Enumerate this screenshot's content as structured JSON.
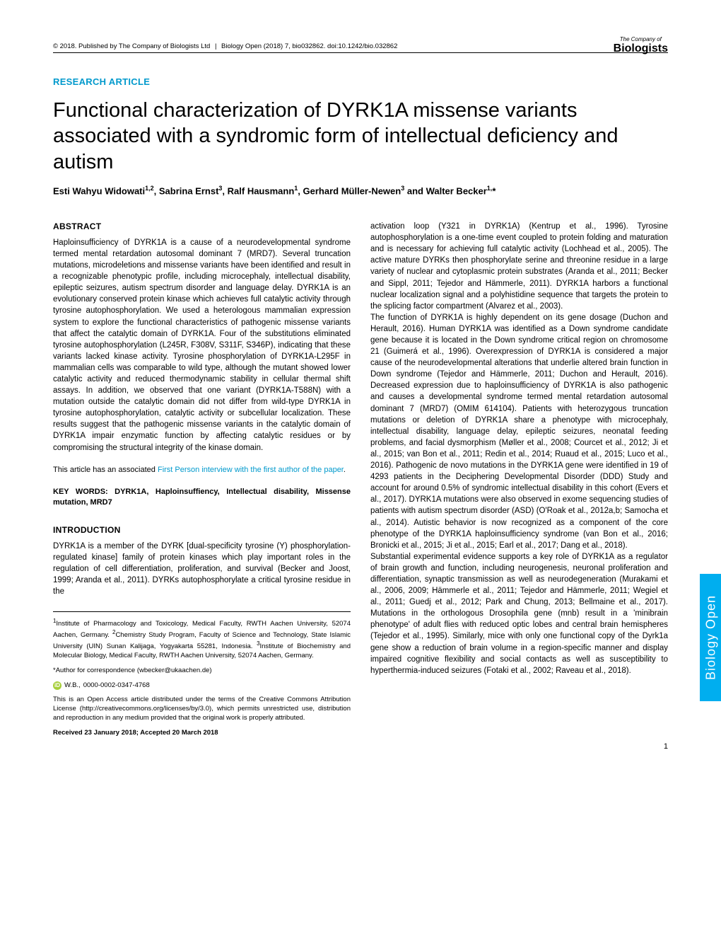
{
  "header": {
    "copyright": "© 2018. Published by The Company of Biologists Ltd",
    "journal": "Biology Open (2018) 7, bio032862. doi:10.1242/bio.032862",
    "logo_top": "The Company of",
    "logo_main": "Biologists"
  },
  "section_label": "RESEARCH ARTICLE",
  "title": "Functional characterization of DYRK1A missense variants associated with a syndromic form of intellectual deficiency and autism",
  "authors_html": "Esti Wahyu Widowati<sup>1,2</sup>, Sabrina Ernst<sup>3</sup>, Ralf Hausmann<sup>1</sup>, Gerhard Müller-Newen<sup>3</sup> and Walter Becker<sup>1,</sup>*",
  "abstract": {
    "heading": "ABSTRACT",
    "text": "Haploinsufficiency of DYRK1A is a cause of a neurodevelopmental syndrome termed mental retardation autosomal dominant 7 (MRD7). Several truncation mutations, microdeletions and missense variants have been identified and result in a recognizable phenotypic profile, including microcephaly, intellectual disability, epileptic seizures, autism spectrum disorder and language delay. DYRK1A is an evolutionary conserved protein kinase which achieves full catalytic activity through tyrosine autophosphorylation. We used a heterologous mammalian expression system to explore the functional characteristics of pathogenic missense variants that affect the catalytic domain of DYRK1A. Four of the substitutions eliminated tyrosine autophosphorylation (L245R, F308V, S311F, S346P), indicating that these variants lacked kinase activity. Tyrosine phosphorylation of DYRK1A-L295F in mammalian cells was comparable to wild type, although the mutant showed lower catalytic activity and reduced thermodynamic stability in cellular thermal shift assays. In addition, we observed that one variant (DYRK1A-T588N) with a mutation outside the catalytic domain did not differ from wild-type DYRK1A in tyrosine autophosphorylation, catalytic activity or subcellular localization. These results suggest that the pathogenic missense variants in the catalytic domain of DYRK1A impair enzymatic function by affecting catalytic residues or by compromising the structural integrity of the kinase domain."
  },
  "first_person": {
    "prefix": "This article has an associated ",
    "link_text": "First Person interview with the first author of the paper",
    "suffix": "."
  },
  "keywords": "KEY WORDS: DYRK1A, Haploinsuffiency, Intellectual disability, Missense mutation, MRD7",
  "intro": {
    "heading": "INTRODUCTION",
    "p1": "DYRK1A is a member of the DYRK [dual-specificity tyrosine (Y) phosphorylation-regulated kinase] family of protein kinases which play important roles in the regulation of cell differentiation, proliferation, and survival (Becker and Joost, 1999; Aranda et al., 2011). DYRKs autophosphorylate a critical tyrosine residue in the"
  },
  "right_col": {
    "p1": "activation loop (Y321 in DYRK1A) (Kentrup et al., 1996). Tyrosine autophosphorylation is a one-time event coupled to protein folding and maturation and is necessary for achieving full catalytic activity (Lochhead et al., 2005). The active mature DYRKs then phosphorylate serine and threonine residue in a large variety of nuclear and cytoplasmic protein substrates (Aranda et al., 2011; Becker and Sippl, 2011; Tejedor and Hämmerle, 2011). DYRK1A harbors a functional nuclear localization signal and a polyhistidine sequence that targets the protein to the splicing factor compartment (Alvarez et al., 2003).",
    "p2": "The function of DYRK1A is highly dependent on its gene dosage (Duchon and Herault, 2016). Human DYRK1A was identified as a Down syndrome candidate gene because it is located in the Down syndrome critical region on chromosome 21 (Guimerá et al., 1996). Overexpression of DYRK1A is considered a major cause of the neurodevelopmental alterations that underlie altered brain function in Down syndrome (Tejedor and Hämmerle, 2011; Duchon and Herault, 2016). Decreased expression due to haploinsufficiency of DYRK1A is also pathogenic and causes a developmental syndrome termed mental retardation autosomal dominant 7 (MRD7) (OMIM 614104). Patients with heterozygous truncation mutations or deletion of DYRK1A share a phenotype with microcephaly, intellectual disability, language delay, epileptic seizures, neonatal feeding problems, and facial dysmorphism (Møller et al., 2008; Courcet et al., 2012; Ji et al., 2015; van Bon et al., 2011; Redin et al., 2014; Ruaud et al., 2015; Luco et al., 2016). Pathogenic de novo mutations in the DYRK1A gene were identified in 19 of 4293 patients in the Deciphering Developmental Disorder (DDD) Study and account for around 0.5% of syndromic intellectual disability in this cohort (Evers et al., 2017). DYRK1A mutations were also observed in exome sequencing studies of patients with autism spectrum disorder (ASD) (O'Roak et al., 2012a,b; Samocha et al., 2014). Autistic behavior is now recognized as a component of the core phenotype of the DYRK1A haploinsufficiency syndrome (van Bon et al., 2016; Bronicki et al., 2015; Ji et al., 2015; Earl et al., 2017; Dang et al., 2018).",
    "p3": "Substantial experimental evidence supports a key role of DYRK1A as a regulator of brain growth and function, including neurogenesis, neuronal proliferation and differentiation, synaptic transmission as well as neurodegeneration (Murakami et al., 2006, 2009; Hämmerle et al., 2011; Tejedor and Hämmerle, 2011; Wegiel et al., 2011; Guedj et al., 2012; Park and Chung, 2013; Bellmaine et al., 2017). Mutations in the orthologous Drosophila gene (mnb) result in a 'minibrain phenotype' of adult flies with reduced optic lobes and central brain hemispheres (Tejedor et al., 1995). Similarly, mice with only one functional copy of the Dyrk1a gene show a reduction of brain volume in a region-specific manner and display impaired cognitive flexibility and social contacts as well as susceptibility to hyperthermia-induced seizures (Fotaki et al., 2002; Raveau et al., 2018)."
  },
  "footnotes": {
    "affil": "<sup>1</sup>Institute of Pharmacology and Toxicology, Medical Faculty, RWTH Aachen University, 52074 Aachen, Germany. <sup>2</sup>Chemistry Study Program, Faculty of Science and Technology, State Islamic University (UIN) Sunan Kalijaga, Yogyakarta 55281, Indonesia. <sup>3</sup>Institute of Biochemistry and Molecular Biology, Medical Faculty, RWTH Aachen University, 52074 Aachen, Germany.",
    "corr": "*Author for correspondence (wbecker@ukaachen.de)",
    "orcid_label": "W.B.,",
    "orcid_id": "0000-0002-0347-4768",
    "license": "This is an Open Access article distributed under the terms of the Creative Commons Attribution License (http://creativecommons.org/licenses/by/3.0), which permits unrestricted use, distribution and reproduction in any medium provided that the original work is properly attributed.",
    "received": "Received 23 January 2018; Accepted 20 March 2018"
  },
  "side_tab": "Biology Open",
  "page_num": "1",
  "colors": {
    "accent": "#0099cc",
    "tab": "#00aeef",
    "orcid": "#a6ce39"
  }
}
